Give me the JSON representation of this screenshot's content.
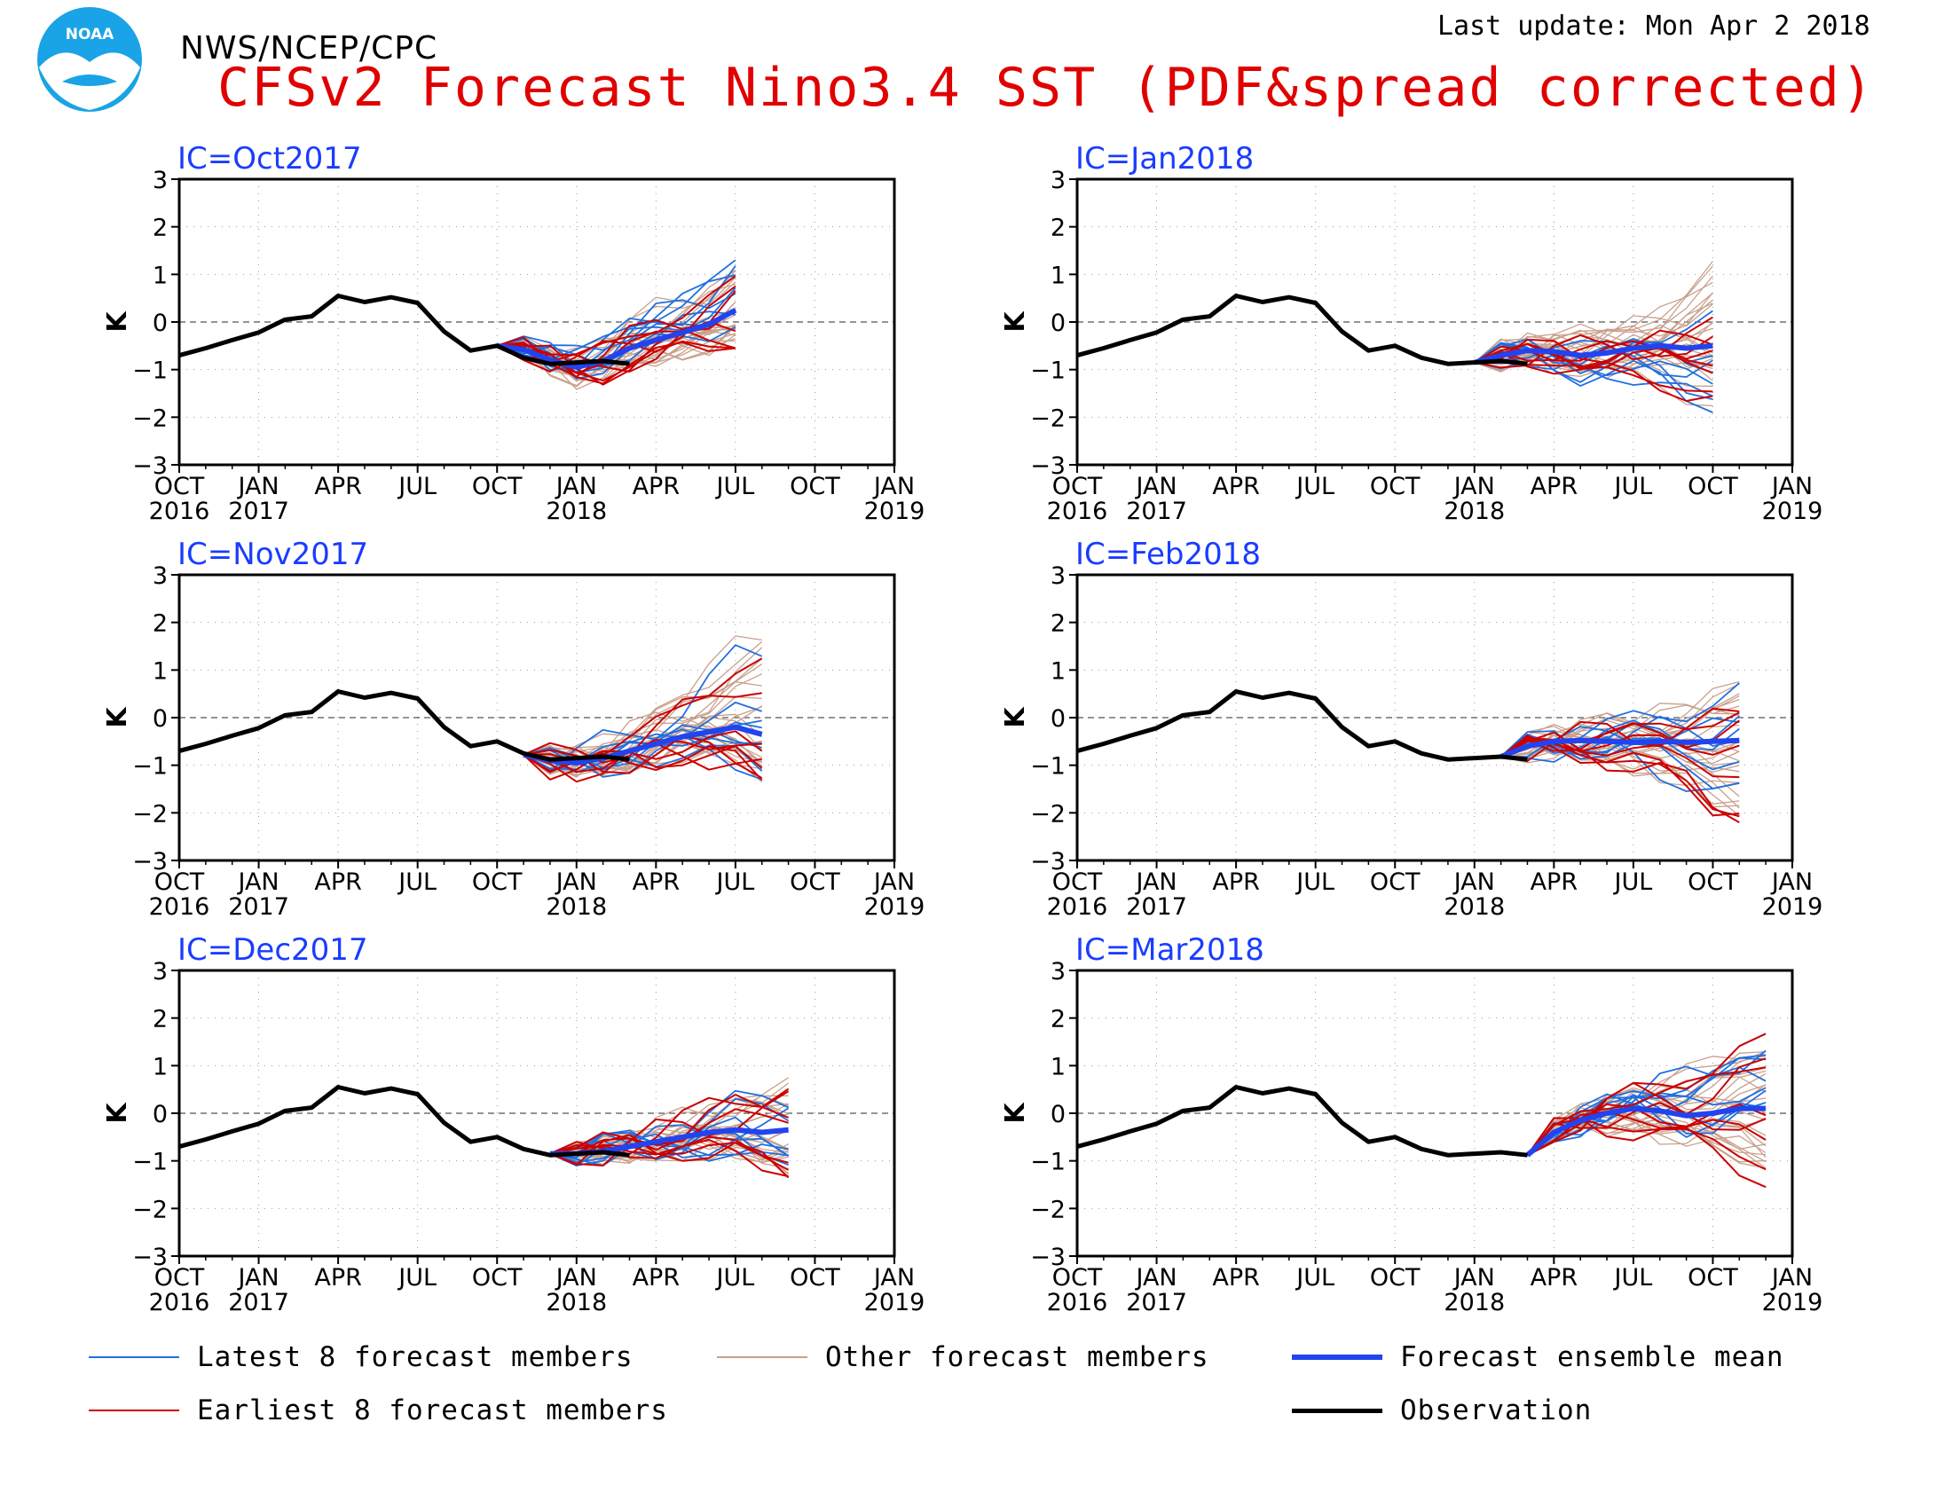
{
  "header": {
    "org": "NWS/NCEP/CPC",
    "title": "CFSv2 Forecast Nino3.4 SST (PDF&spread corrected)",
    "last_update": "Last update: Mon Apr 2 2018",
    "logo_text": "NOAA"
  },
  "colors": {
    "title": "#e00000",
    "panel_title": "#1a3cff",
    "latest": "#1f6fe0",
    "earliest": "#cc0000",
    "other": "#c8a08c",
    "mean": "#2244ee",
    "observation": "#000000"
  },
  "chart_data": [
    {
      "type": "line",
      "title": "IC=Oct2017",
      "ylabel": "K",
      "ylim": [
        -3,
        3
      ],
      "xlim": [
        "2016-10",
        "2019-01"
      ],
      "yticks": [
        "3",
        "2",
        "1",
        "0",
        "−1",
        "−2",
        "−3"
      ],
      "xticks": [
        [
          "OCT",
          "2016"
        ],
        [
          "JAN",
          "2017"
        ],
        [
          "APR",
          ""
        ],
        [
          "JUL",
          ""
        ],
        [
          "OCT",
          ""
        ],
        [
          "JAN",
          "2018"
        ],
        [
          "APR",
          ""
        ],
        [
          "JUL",
          ""
        ],
        [
          "OCT",
          ""
        ],
        [
          "JAN",
          "2019"
        ]
      ],
      "grid": true,
      "observation": {
        "x": [
          "2016-10",
          "2016-11",
          "2016-12",
          "2017-01",
          "2017-02",
          "2017-03",
          "2017-04",
          "2017-05",
          "2017-06",
          "2017-07",
          "2017-08",
          "2017-09",
          "2017-10",
          "2017-11",
          "2017-12",
          "2018-01",
          "2018-02",
          "2018-03"
        ],
        "y": [
          -0.7,
          -0.55,
          -0.38,
          -0.22,
          0.05,
          0.12,
          0.55,
          0.42,
          0.52,
          0.4,
          -0.2,
          -0.6,
          -0.5,
          -0.75,
          -0.88,
          -0.85,
          -0.82,
          -0.88
        ]
      },
      "forecast_start": "2017-10",
      "forecast_end": "2018-07",
      "ensemble_mean": [
        -0.5,
        -0.58,
        -0.8,
        -0.95,
        -0.82,
        -0.55,
        -0.38,
        -0.22,
        -0.05,
        0.25
      ],
      "spread": {
        "low": [
          -0.55,
          -0.8,
          -1.2,
          -1.6,
          -1.5,
          -1.1,
          -0.95,
          -0.8,
          -0.7,
          -0.55
        ],
        "high": [
          -0.45,
          -0.3,
          -0.05,
          0.1,
          0.05,
          0.3,
          0.55,
          0.75,
          1.0,
          1.3
        ]
      }
    },
    {
      "type": "line",
      "title": "IC=Jan2018",
      "ylabel": "K",
      "ylim": [
        -3,
        3
      ],
      "xlim": [
        "2016-10",
        "2019-01"
      ],
      "yticks": [
        "3",
        "2",
        "1",
        "0",
        "−1",
        "−2",
        "−3"
      ],
      "xticks": [
        [
          "OCT",
          "2016"
        ],
        [
          "JAN",
          "2017"
        ],
        [
          "APR",
          ""
        ],
        [
          "JUL",
          ""
        ],
        [
          "OCT",
          ""
        ],
        [
          "JAN",
          "2018"
        ],
        [
          "APR",
          ""
        ],
        [
          "JUL",
          ""
        ],
        [
          "OCT",
          ""
        ],
        [
          "JAN",
          "2019"
        ]
      ],
      "grid": true,
      "observation": {
        "x": [
          "2016-10",
          "2016-11",
          "2016-12",
          "2017-01",
          "2017-02",
          "2017-03",
          "2017-04",
          "2017-05",
          "2017-06",
          "2017-07",
          "2017-08",
          "2017-09",
          "2017-10",
          "2017-11",
          "2017-12",
          "2018-01",
          "2018-02",
          "2018-03"
        ],
        "y": [
          -0.7,
          -0.55,
          -0.38,
          -0.22,
          0.05,
          0.12,
          0.55,
          0.42,
          0.52,
          0.4,
          -0.2,
          -0.6,
          -0.5,
          -0.75,
          -0.88,
          -0.85,
          -0.82,
          -0.88
        ]
      },
      "forecast_start": "2018-01",
      "forecast_end": "2018-10",
      "ensemble_mean": [
        -0.85,
        -0.7,
        -0.6,
        -0.62,
        -0.7,
        -0.65,
        -0.55,
        -0.5,
        -0.55,
        -0.5
      ],
      "spread": {
        "low": [
          -0.9,
          -1.2,
          -1.4,
          -1.55,
          -1.7,
          -1.6,
          -1.5,
          -1.6,
          -1.8,
          -1.9
        ],
        "high": [
          -0.8,
          -0.3,
          -0.1,
          0.1,
          0.2,
          0.3,
          0.4,
          0.5,
          0.8,
          1.4
        ]
      }
    },
    {
      "type": "line",
      "title": "IC=Nov2017",
      "ylabel": "K",
      "ylim": [
        -3,
        3
      ],
      "xlim": [
        "2016-10",
        "2019-01"
      ],
      "yticks": [
        "3",
        "2",
        "1",
        "0",
        "−1",
        "−2",
        "−3"
      ],
      "xticks": [
        [
          "OCT",
          "2016"
        ],
        [
          "JAN",
          "2017"
        ],
        [
          "APR",
          ""
        ],
        [
          "JUL",
          ""
        ],
        [
          "OCT",
          ""
        ],
        [
          "JAN",
          "2018"
        ],
        [
          "APR",
          ""
        ],
        [
          "JUL",
          ""
        ],
        [
          "OCT",
          ""
        ],
        [
          "JAN",
          "2019"
        ]
      ],
      "grid": true,
      "observation": {
        "x": [
          "2016-10",
          "2016-11",
          "2016-12",
          "2017-01",
          "2017-02",
          "2017-03",
          "2017-04",
          "2017-05",
          "2017-06",
          "2017-07",
          "2017-08",
          "2017-09",
          "2017-10",
          "2017-11",
          "2017-12",
          "2018-01",
          "2018-02",
          "2018-03"
        ],
        "y": [
          -0.7,
          -0.55,
          -0.38,
          -0.22,
          0.05,
          0.12,
          0.55,
          0.42,
          0.52,
          0.4,
          -0.2,
          -0.6,
          -0.5,
          -0.75,
          -0.88,
          -0.85,
          -0.82,
          -0.88
        ]
      },
      "forecast_start": "2017-11",
      "forecast_end": "2018-08",
      "ensemble_mean": [
        -0.78,
        -0.9,
        -0.95,
        -0.85,
        -0.7,
        -0.55,
        -0.4,
        -0.3,
        -0.2,
        -0.35
      ],
      "spread": {
        "low": [
          -0.8,
          -1.3,
          -1.5,
          -1.6,
          -1.3,
          -1.1,
          -1.0,
          -1.1,
          -1.2,
          -1.35
        ],
        "high": [
          -0.75,
          -0.5,
          -0.2,
          0.1,
          0.4,
          0.7,
          1.0,
          1.5,
          2.1,
          2.2
        ]
      }
    },
    {
      "type": "line",
      "title": "IC=Feb2018",
      "ylabel": "K",
      "ylim": [
        -3,
        3
      ],
      "xlim": [
        "2016-10",
        "2019-01"
      ],
      "yticks": [
        "3",
        "2",
        "1",
        "0",
        "−1",
        "−2",
        "−3"
      ],
      "xticks": [
        [
          "OCT",
          "2016"
        ],
        [
          "JAN",
          "2017"
        ],
        [
          "APR",
          ""
        ],
        [
          "JUL",
          ""
        ],
        [
          "OCT",
          ""
        ],
        [
          "JAN",
          "2018"
        ],
        [
          "APR",
          ""
        ],
        [
          "JUL",
          ""
        ],
        [
          "OCT",
          ""
        ],
        [
          "JAN",
          "2019"
        ]
      ],
      "grid": true,
      "observation": {
        "x": [
          "2016-10",
          "2016-11",
          "2016-12",
          "2017-01",
          "2017-02",
          "2017-03",
          "2017-04",
          "2017-05",
          "2017-06",
          "2017-07",
          "2017-08",
          "2017-09",
          "2017-10",
          "2017-11",
          "2017-12",
          "2018-01",
          "2018-02",
          "2018-03"
        ],
        "y": [
          -0.7,
          -0.55,
          -0.38,
          -0.22,
          0.05,
          0.12,
          0.55,
          0.42,
          0.52,
          0.4,
          -0.2,
          -0.6,
          -0.5,
          -0.75,
          -0.88,
          -0.85,
          -0.82,
          -0.88
        ]
      },
      "forecast_start": "2018-02",
      "forecast_end": "2018-11",
      "ensemble_mean": [
        -0.82,
        -0.6,
        -0.5,
        -0.48,
        -0.5,
        -0.52,
        -0.5,
        -0.52,
        -0.5,
        -0.48
      ],
      "spread": {
        "low": [
          -0.85,
          -1.0,
          -1.1,
          -1.2,
          -1.3,
          -1.4,
          -1.6,
          -1.8,
          -2.2,
          -2.2
        ],
        "high": [
          -0.8,
          -0.3,
          -0.05,
          0.3,
          0.55,
          0.5,
          0.4,
          0.5,
          0.7,
          0.85
        ]
      }
    },
    {
      "type": "line",
      "title": "IC=Dec2017",
      "ylabel": "K",
      "ylim": [
        -3,
        3
      ],
      "xlim": [
        "2016-10",
        "2019-01"
      ],
      "yticks": [
        "3",
        "2",
        "1",
        "0",
        "−1",
        "−2",
        "−3"
      ],
      "xticks": [
        [
          "OCT",
          "2016"
        ],
        [
          "JAN",
          "2017"
        ],
        [
          "APR",
          ""
        ],
        [
          "JUL",
          ""
        ],
        [
          "OCT",
          ""
        ],
        [
          "JAN",
          "2018"
        ],
        [
          "APR",
          ""
        ],
        [
          "JUL",
          ""
        ],
        [
          "OCT",
          ""
        ],
        [
          "JAN",
          "2019"
        ]
      ],
      "grid": true,
      "observation": {
        "x": [
          "2016-10",
          "2016-11",
          "2016-12",
          "2017-01",
          "2017-02",
          "2017-03",
          "2017-04",
          "2017-05",
          "2017-06",
          "2017-07",
          "2017-08",
          "2017-09",
          "2017-10",
          "2017-11",
          "2017-12",
          "2018-01",
          "2018-02",
          "2018-03"
        ],
        "y": [
          -0.7,
          -0.55,
          -0.38,
          -0.22,
          0.05,
          0.12,
          0.55,
          0.42,
          0.52,
          0.4,
          -0.2,
          -0.6,
          -0.5,
          -0.75,
          -0.88,
          -0.85,
          -0.82,
          -0.88
        ]
      },
      "forecast_start": "2017-12",
      "forecast_end": "2018-09",
      "ensemble_mean": [
        -0.85,
        -0.85,
        -0.8,
        -0.7,
        -0.6,
        -0.5,
        -0.4,
        -0.35,
        -0.4,
        -0.35
      ],
      "spread": {
        "low": [
          -0.9,
          -1.1,
          -1.1,
          -1.05,
          -1.0,
          -1.0,
          -1.1,
          -1.2,
          -1.3,
          -1.35
        ],
        "high": [
          -0.8,
          -0.6,
          -0.4,
          -0.2,
          0.0,
          0.2,
          0.4,
          0.6,
          0.7,
          0.75
        ]
      }
    },
    {
      "type": "line",
      "title": "IC=Mar2018",
      "ylabel": "K",
      "ylim": [
        -3,
        3
      ],
      "xlim": [
        "2016-10",
        "2019-01"
      ],
      "yticks": [
        "3",
        "2",
        "1",
        "0",
        "−1",
        "−2",
        "−3"
      ],
      "xticks": [
        [
          "OCT",
          "2016"
        ],
        [
          "JAN",
          "2017"
        ],
        [
          "APR",
          ""
        ],
        [
          "JUL",
          ""
        ],
        [
          "OCT",
          ""
        ],
        [
          "JAN",
          "2018"
        ],
        [
          "APR",
          ""
        ],
        [
          "JUL",
          ""
        ],
        [
          "OCT",
          ""
        ],
        [
          "JAN",
          "2019"
        ]
      ],
      "grid": true,
      "observation": {
        "x": [
          "2016-10",
          "2016-11",
          "2016-12",
          "2017-01",
          "2017-02",
          "2017-03",
          "2017-04",
          "2017-05",
          "2017-06",
          "2017-07",
          "2017-08",
          "2017-09",
          "2017-10",
          "2017-11",
          "2017-12",
          "2018-01",
          "2018-02",
          "2018-03"
        ],
        "y": [
          -0.7,
          -0.55,
          -0.38,
          -0.22,
          0.05,
          0.12,
          0.55,
          0.42,
          0.52,
          0.4,
          -0.2,
          -0.6,
          -0.5,
          -0.75,
          -0.88,
          -0.85,
          -0.82,
          -0.88
        ]
      },
      "forecast_start": "2018-03",
      "forecast_end": "2018-12",
      "ensemble_mean": [
        -0.88,
        -0.4,
        -0.15,
        0.0,
        0.1,
        0.05,
        -0.05,
        0.0,
        0.1,
        0.1
      ],
      "spread": {
        "low": [
          -0.9,
          -0.6,
          -0.7,
          -0.8,
          -0.9,
          -1.0,
          -1.1,
          -1.2,
          -1.35,
          -1.55
        ],
        "high": [
          -0.85,
          -0.1,
          0.3,
          0.7,
          1.0,
          1.3,
          1.4,
          1.5,
          1.7,
          1.8
        ]
      }
    }
  ],
  "legend": [
    {
      "label": "Latest 8 forecast members",
      "kind": "latest"
    },
    {
      "label": "Other forecast members",
      "kind": "other"
    },
    {
      "label": "Forecast ensemble mean",
      "kind": "mean"
    },
    {
      "label": "Earliest 8 forecast members",
      "kind": "earliest"
    },
    {
      "label": "Observation",
      "kind": "observation"
    }
  ]
}
